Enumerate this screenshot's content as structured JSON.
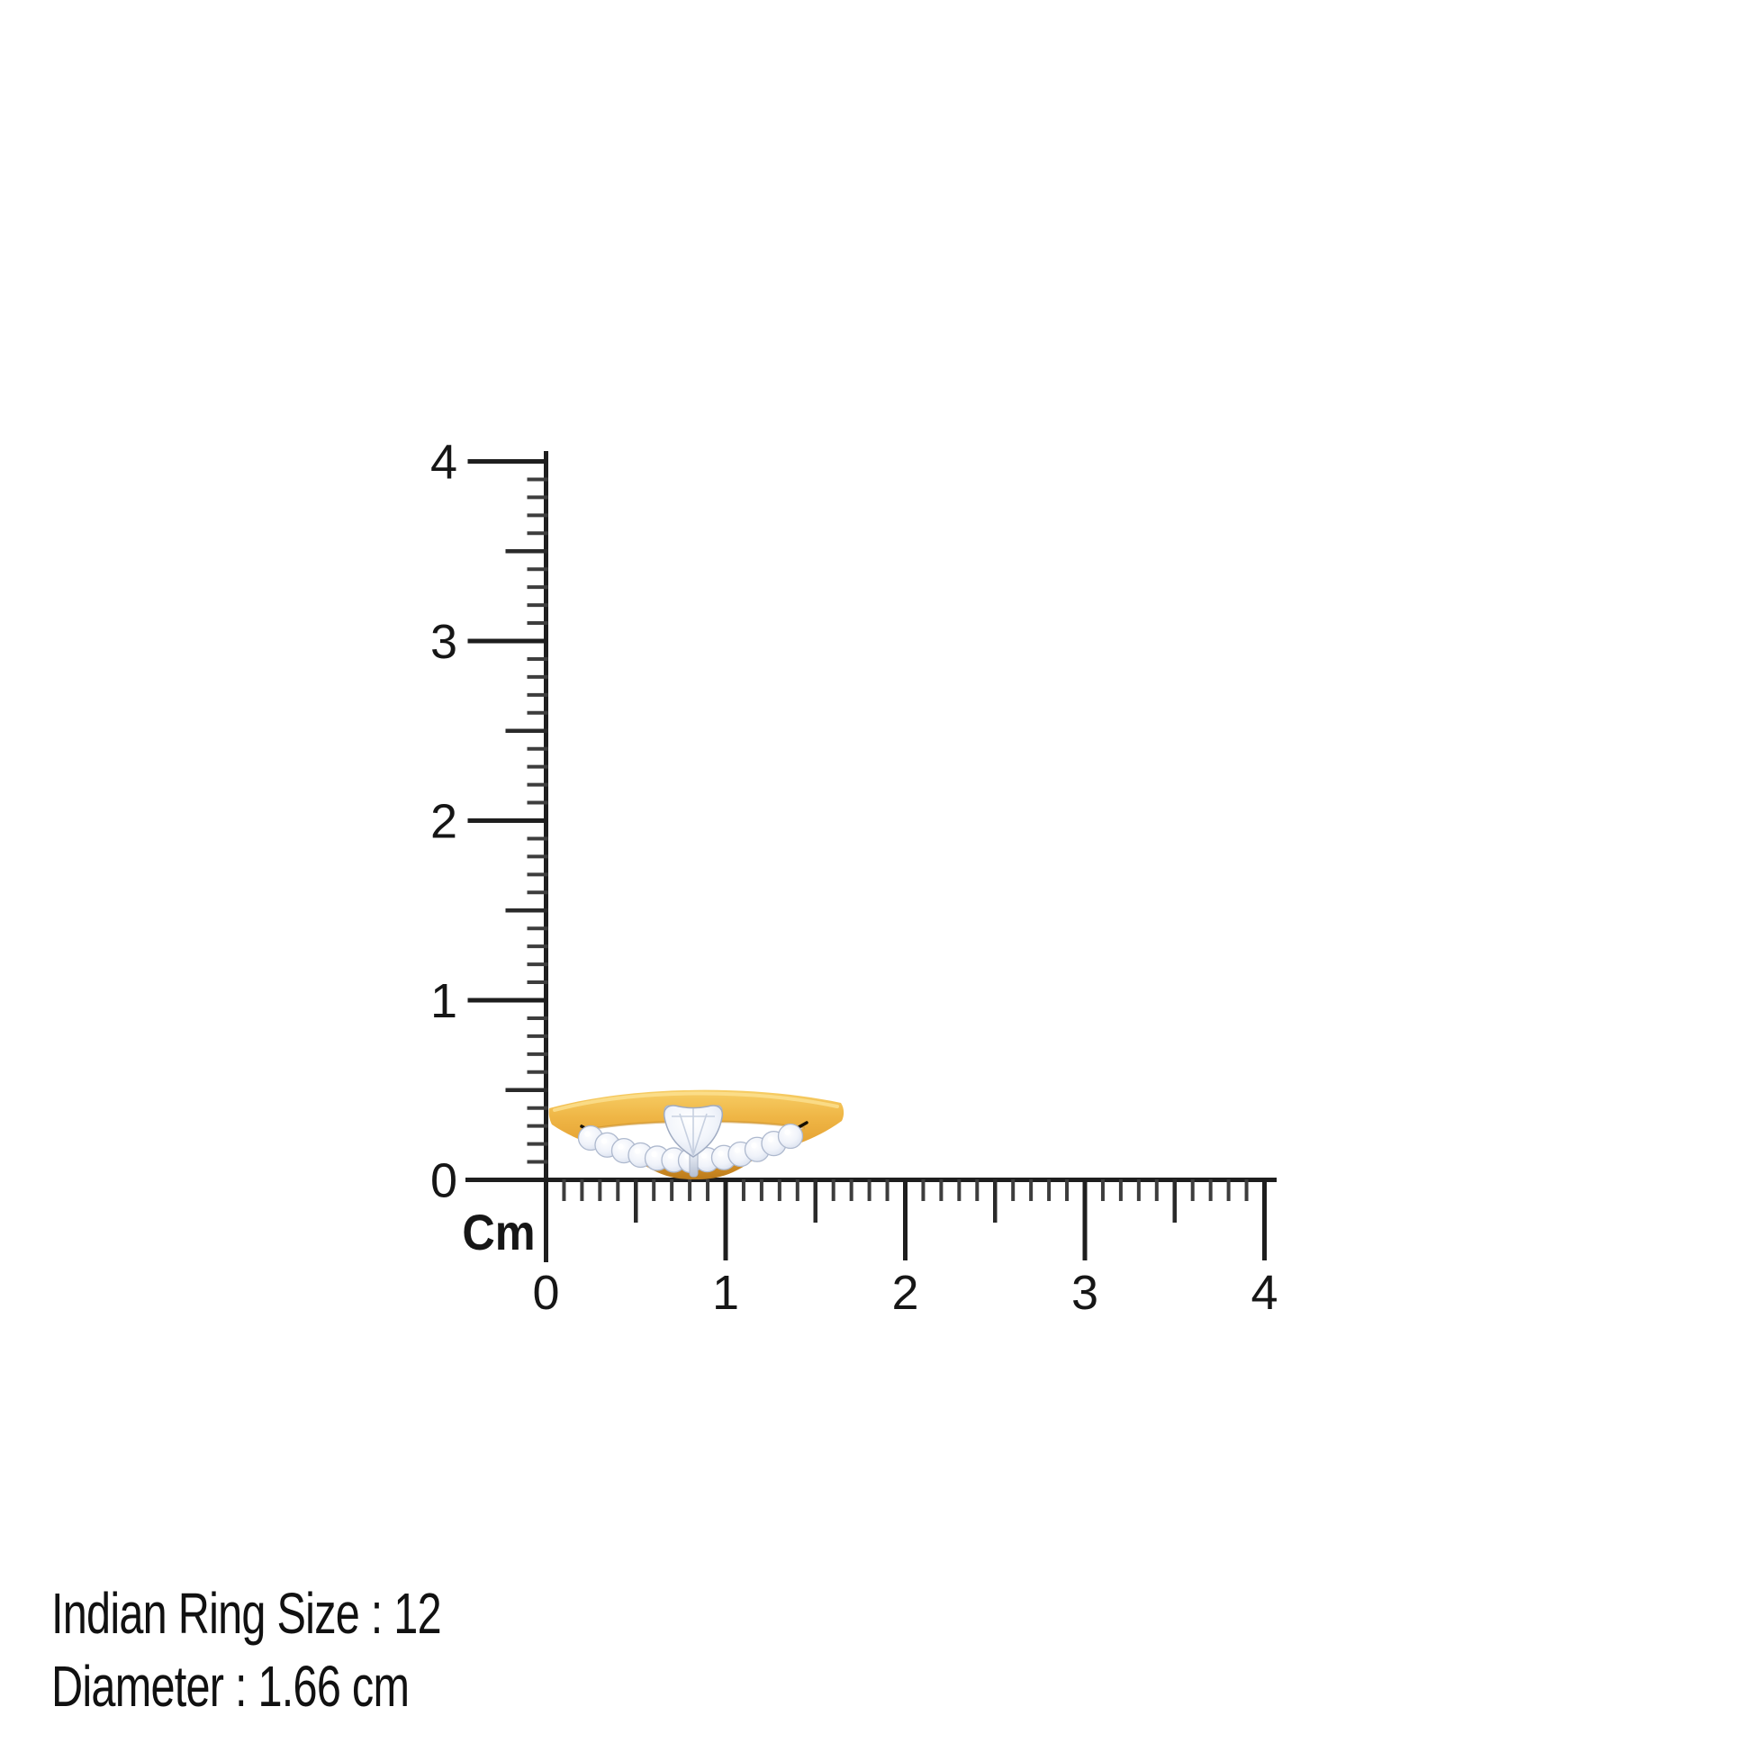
{
  "scene": {
    "background": "#ffffff"
  },
  "ruler": {
    "unit_label": "Cm",
    "vertical_axis": {
      "min": 0,
      "max": 4,
      "labels": [
        "0",
        "1",
        "2",
        "3",
        "4"
      ]
    },
    "horizontal_axis": {
      "min": 0,
      "max": 4,
      "labels": [
        "0",
        "1",
        "2",
        "3",
        "4"
      ]
    },
    "minor_step_cm": 0.1,
    "medium_step_cm": 0.5,
    "major_step_cm": 1,
    "colors": {
      "line": "#1e1e1e",
      "major_tick": "#1e1e1e",
      "medium_tick": "#2a2a2a",
      "minor_tick": "#3d3d3d",
      "label": "#161616"
    }
  },
  "ring": {
    "description": "yellow gold chevron band with pave diamond row and trillion-cut center diamond",
    "pave_stone_count": 13,
    "center_stone": "trillion-diamond",
    "colors": {
      "gold_light": "#F9D878",
      "gold": "#EDAF41",
      "gold_dark": "#C07C1B",
      "gold_deep": "#AD7014",
      "diamond": "#F4F6FB",
      "diamond_edge": "#AEB9CE",
      "notch": "#171003"
    }
  },
  "caption": {
    "line1": "Indian Ring Size : 12",
    "line2": "Diameter : 1.66 cm",
    "color": "#111111"
  }
}
